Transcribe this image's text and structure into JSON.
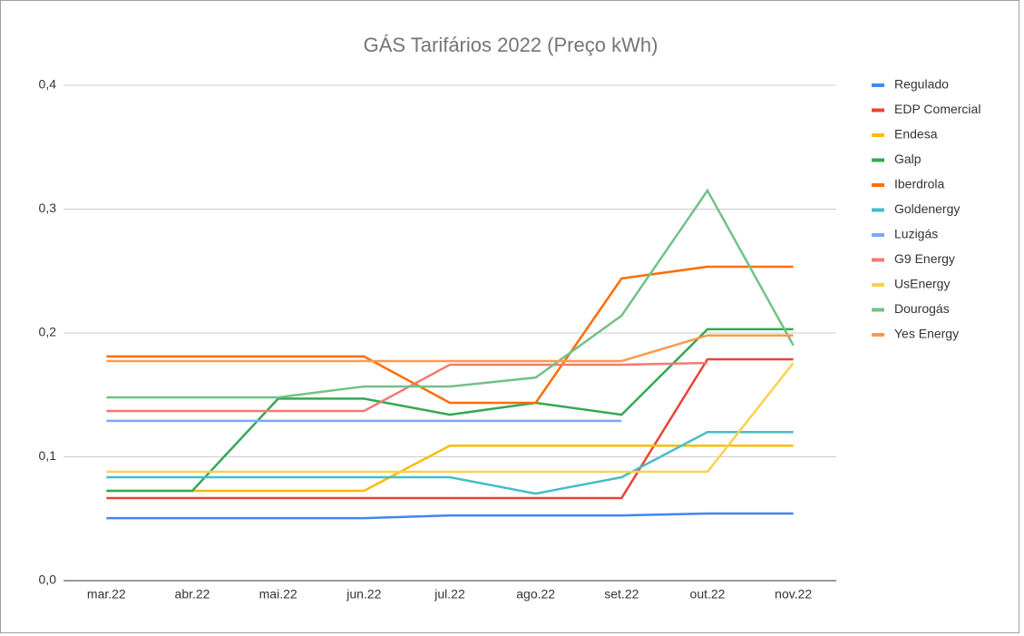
{
  "chart_data": {
    "type": "line",
    "title": "GÁS Tarifários 2022 (Preço kWh)",
    "categories": [
      "mar.22",
      "abr.22",
      "mai.22",
      "jun.22",
      "jul.22",
      "ago.22",
      "set.22",
      "out.22",
      "nov.22"
    ],
    "ylim": [
      0,
      0.4
    ],
    "yticks": [
      {
        "value": 0,
        "label": "0,0"
      },
      {
        "value": 0.1,
        "label": "0,1"
      },
      {
        "value": 0.2,
        "label": "0,2"
      },
      {
        "value": 0.3,
        "label": "0,3"
      },
      {
        "value": 0.4,
        "label": "0,4"
      }
    ],
    "grid": true,
    "legend": "right",
    "series": [
      {
        "name": "Regulado",
        "color": "#4285f4",
        "values": [
          0.0505,
          0.0505,
          0.0505,
          0.0505,
          0.0527,
          0.0527,
          0.0527,
          0.0542,
          0.0542
        ]
      },
      {
        "name": "EDP Comercial",
        "color": "#ea4335",
        "values": [
          0.0667,
          0.0667,
          0.0667,
          0.0667,
          0.0667,
          0.0667,
          0.0667,
          0.1788,
          0.1788
        ]
      },
      {
        "name": "Endesa",
        "color": "#fbbc04",
        "values": [
          0.0725,
          0.0725,
          0.0725,
          0.0725,
          0.109,
          0.109,
          0.109,
          0.109,
          0.109
        ]
      },
      {
        "name": "Galp",
        "color": "#34a853",
        "values": [
          0.0725,
          0.0725,
          0.147,
          0.147,
          0.134,
          0.1436,
          0.134,
          0.203,
          0.203
        ]
      },
      {
        "name": "Iberdrola",
        "color": "#ff6d01",
        "values": [
          0.181,
          0.181,
          0.181,
          0.181,
          0.1436,
          0.1436,
          0.244,
          0.2535,
          0.2535
        ]
      },
      {
        "name": "Goldenergy",
        "color": "#46bdc6",
        "values": [
          0.0835,
          0.0835,
          0.0835,
          0.0835,
          0.0835,
          0.0703,
          0.0835,
          0.12,
          0.12
        ]
      },
      {
        "name": "Luzigás",
        "color": "#7baaf7",
        "values": [
          0.129,
          0.129,
          0.129,
          0.129,
          0.129,
          0.129,
          0.129,
          null,
          null
        ]
      },
      {
        "name": "G9 Energy",
        "color": "#f07b72",
        "values": [
          0.137,
          0.137,
          0.137,
          0.137,
          0.1744,
          0.1744,
          0.1744,
          0.1758,
          null
        ]
      },
      {
        "name": "UsEnergy",
        "color": "#fcd04f",
        "values": [
          0.0879,
          0.0879,
          0.0879,
          0.0879,
          0.0879,
          0.0879,
          0.0879,
          0.0879,
          0.1758
        ]
      },
      {
        "name": "Dourogás",
        "color": "#71c287",
        "values": [
          0.148,
          0.148,
          0.148,
          0.1568,
          0.1568,
          0.164,
          0.214,
          0.315,
          0.19
        ]
      },
      {
        "name": "Yes Energy",
        "color": "#ff994d",
        "values": [
          0.1773,
          0.1773,
          0.1773,
          0.1773,
          0.1773,
          0.1773,
          0.1773,
          0.198,
          0.198
        ]
      }
    ]
  }
}
